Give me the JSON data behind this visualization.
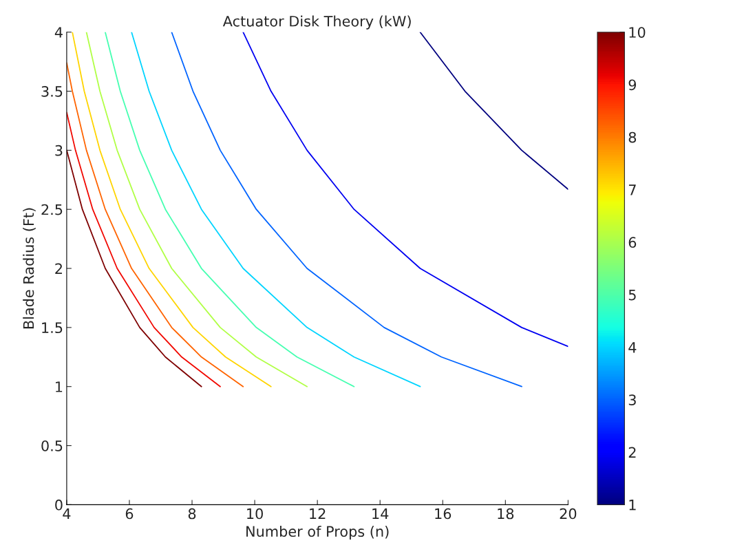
{
  "chart_data": {
    "type": "line",
    "title": "Actuator Disk Theory (kW)",
    "xlabel": "Number of Props (n)",
    "ylabel": "Blade Radius (Ft)",
    "xlim": [
      4,
      20
    ],
    "xticks": [
      4,
      6,
      8,
      10,
      12,
      14,
      16,
      18,
      20
    ],
    "ylim": [
      0,
      4
    ],
    "yticks": [
      0,
      0.5,
      1,
      1.5,
      2,
      2.5,
      3,
      3.5,
      4
    ],
    "clim": [
      1,
      10
    ],
    "cticks": [
      1,
      2,
      3,
      4,
      5,
      6,
      7,
      8,
      9,
      10
    ],
    "grid": false,
    "legend": false,
    "marker": "none",
    "line_style": "solid",
    "series": [
      {
        "color": "#7f0000",
        "x": [
          8.3,
          7.15,
          6.33,
          5.23,
          4.5,
          4.0
        ],
        "values": [
          1,
          1.25,
          1.5,
          2,
          2.5,
          3.0
        ]
      },
      {
        "color": "#f10800",
        "x": [
          8.9,
          7.67,
          6.79,
          5.61,
          4.83,
          4.28,
          4.0
        ],
        "values": [
          1,
          1.25,
          1.5,
          2,
          2.5,
          3,
          3.32
        ]
      },
      {
        "color": "#ff6400",
        "x": [
          9.63,
          8.3,
          7.35,
          6.07,
          5.23,
          4.63,
          4.18,
          4.0
        ],
        "values": [
          1,
          1.25,
          1.5,
          2,
          2.5,
          3,
          3.5,
          3.74
        ]
      },
      {
        "color": "#ffd400",
        "x": [
          10.52,
          9.07,
          8.03,
          6.63,
          5.71,
          5.06,
          4.56,
          4.18
        ],
        "values": [
          1,
          1.25,
          1.5,
          2,
          2.5,
          3,
          3.5,
          4
        ]
      },
      {
        "color": "#b1ff46",
        "x": [
          11.67,
          10.05,
          8.9,
          7.35,
          6.33,
          5.61,
          5.06,
          4.63
        ],
        "values": [
          1,
          1.25,
          1.5,
          2,
          2.5,
          3,
          3.5,
          4
        ]
      },
      {
        "color": "#46ffb1",
        "x": [
          13.17,
          11.35,
          10.05,
          8.3,
          7.15,
          6.33,
          5.71,
          5.23
        ],
        "values": [
          1,
          1.25,
          1.5,
          2,
          2.5,
          3,
          3.5,
          4
        ]
      },
      {
        "color": "#00d4ff",
        "x": [
          15.28,
          13.17,
          11.67,
          9.63,
          8.3,
          7.35,
          6.63,
          6.07
        ],
        "values": [
          1,
          1.25,
          1.5,
          2,
          2.5,
          3,
          3.5,
          4
        ]
      },
      {
        "color": "#0064ff",
        "x": [
          18.52,
          15.96,
          14.13,
          11.67,
          10.05,
          8.9,
          8.03,
          7.35
        ],
        "values": [
          1,
          1.25,
          1.5,
          2,
          2.5,
          3,
          3.5,
          4
        ]
      },
      {
        "color": "#0000f1",
        "x": [
          20.0,
          18.52,
          15.28,
          13.17,
          11.67,
          10.52,
          9.63
        ],
        "values": [
          1.34,
          1.5,
          2,
          2.5,
          3,
          3.5,
          4
        ]
      },
      {
        "color": "#00007f",
        "x": [
          20.0,
          18.52,
          16.71,
          15.28
        ],
        "values": [
          2.67,
          3,
          3.5,
          4
        ]
      }
    ]
  }
}
